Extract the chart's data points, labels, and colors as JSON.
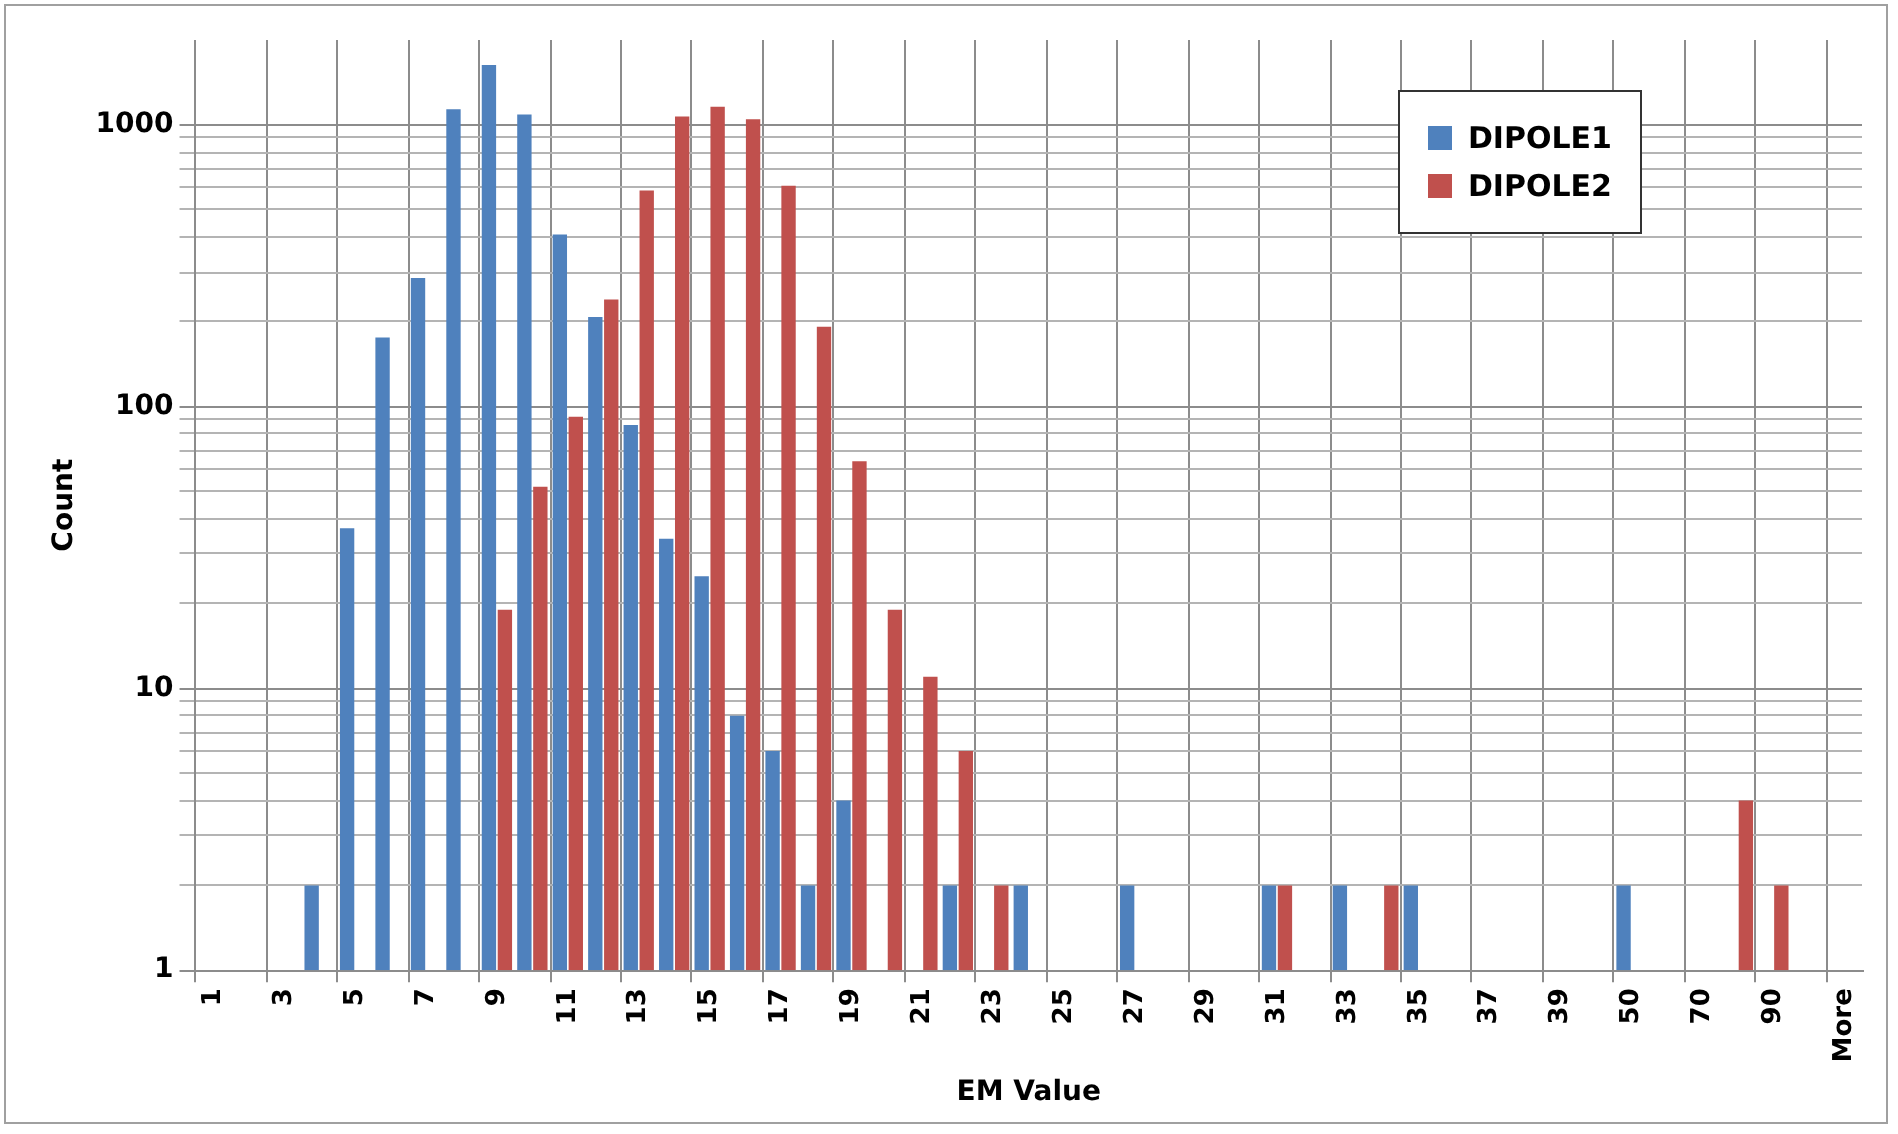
{
  "chart_data": {
    "type": "bar",
    "xlabel": "EM Value",
    "ylabel": "Count",
    "categories": [
      "1",
      null,
      "3",
      null,
      "5",
      null,
      "7",
      null,
      "9",
      null,
      "11",
      null,
      "13",
      null,
      "15",
      null,
      "17",
      null,
      "19",
      null,
      "21",
      null,
      "23",
      null,
      "25",
      null,
      "27",
      null,
      "29",
      null,
      "31",
      null,
      "33",
      null,
      "35",
      null,
      "37",
      null,
      "39",
      null,
      "50",
      null,
      "70",
      null,
      "90",
      null,
      "More"
    ],
    "series": [
      {
        "name": "DIPOLE1",
        "color": "#4f81bd",
        "values": [
          null,
          null,
          null,
          2,
          37,
          176,
          286,
          1135,
          1630,
          1088,
          408,
          208,
          86,
          34,
          25,
          8,
          6,
          2,
          4,
          null,
          null,
          2,
          null,
          2,
          null,
          null,
          2,
          null,
          null,
          null,
          2,
          null,
          2,
          null,
          2,
          null,
          null,
          null,
          null,
          null,
          2,
          null,
          null,
          null,
          null,
          null,
          null
        ]
      },
      {
        "name": "DIPOLE2",
        "color": "#c0504d",
        "values": [
          null,
          null,
          null,
          null,
          null,
          null,
          null,
          null,
          19,
          52,
          92,
          240,
          585,
          1071,
          1160,
          1047,
          608,
          192,
          64,
          19,
          11,
          6,
          2,
          null,
          null,
          null,
          null,
          null,
          null,
          null,
          2,
          null,
          null,
          2,
          null,
          null,
          null,
          null,
          null,
          null,
          null,
          null,
          null,
          4,
          2,
          null,
          null
        ]
      }
    ],
    "log": "y",
    "ylim": [
      1,
      2000
    ],
    "yticks": [
      1,
      {
        "value": 2,
        "label": null
      },
      {
        "value": 3,
        "label": null
      },
      {
        "value": 4,
        "label": null
      },
      {
        "value": 5,
        "label": null
      },
      {
        "value": 6,
        "label": null
      },
      {
        "value": 7,
        "label": null
      },
      {
        "value": 8,
        "label": null
      },
      {
        "value": 9,
        "label": null
      },
      10,
      {
        "value": 20,
        "label": null
      },
      {
        "value": 30,
        "label": null
      },
      {
        "value": 40,
        "label": null
      },
      {
        "value": 50,
        "label": null
      },
      {
        "value": 60,
        "label": null
      },
      {
        "value": 70,
        "label": null
      },
      {
        "value": 80,
        "label": null
      },
      {
        "value": 90,
        "label": null
      },
      100,
      {
        "value": 200,
        "label": null
      },
      {
        "value": 300,
        "label": null
      },
      {
        "value": 400,
        "label": null
      },
      {
        "value": 500,
        "label": null
      },
      {
        "value": 600,
        "label": null
      },
      {
        "value": 700,
        "label": null
      },
      {
        "value": 800,
        "label": null
      },
      {
        "value": 900,
        "label": null
      },
      1000
    ],
    "grid": true,
    "legend": "top right"
  }
}
